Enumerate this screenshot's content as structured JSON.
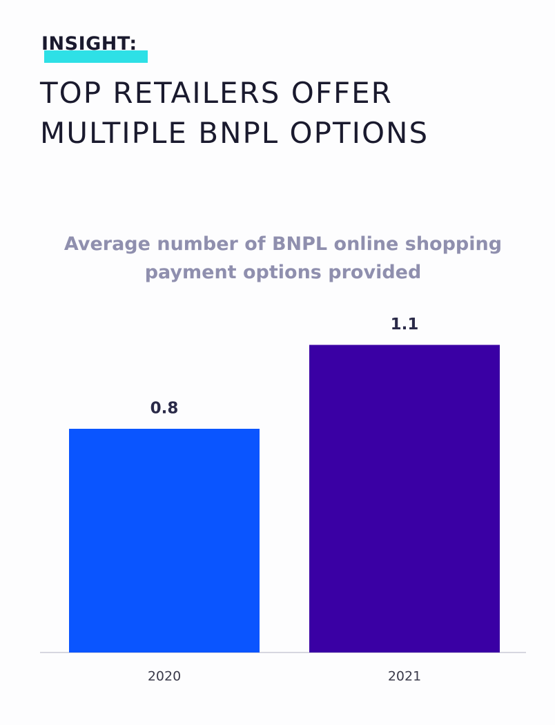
{
  "chart_data": {
    "type": "bar",
    "kicker": "INSIGHT:",
    "title": "TOP RETAILERS OFFER\nMULTIPLE BNPL OPTIONS",
    "subtitle": "Average number of BNPL online shopping\npayment options provided",
    "categories": [
      "2020",
      "2021"
    ],
    "values": [
      0.8,
      1.1
    ],
    "colors": [
      "#0a55ff",
      "#3a00a4"
    ]
  }
}
